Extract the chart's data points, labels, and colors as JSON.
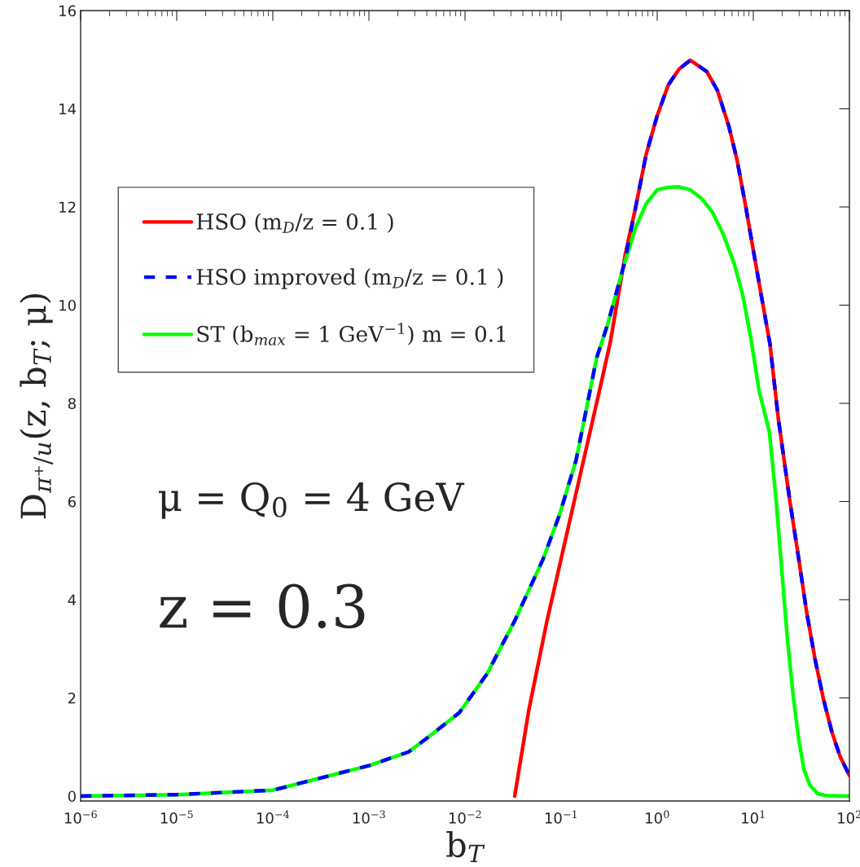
{
  "chart_data": {
    "type": "line",
    "xlabel": "b$_{T}$",
    "ylabel": "D$_{π⁺/u}$(z, b$_{T}$; μ)",
    "log": "x",
    "xlim": [
      1e-06,
      100
    ],
    "ylim": [
      -0.1,
      16
    ],
    "xticks": [
      {
        "value": 1e-06,
        "label": "10$^{−6}$"
      },
      {
        "value": 1e-05,
        "label": "10$^{−5}$"
      },
      {
        "value": 0.0001,
        "label": "10$^{−4}$"
      },
      {
        "value": 0.001,
        "label": "10$^{−3}$"
      },
      {
        "value": 0.01,
        "label": "10$^{−2}$"
      },
      {
        "value": 0.1,
        "label": "10$^{−1}$"
      },
      {
        "value": 1,
        "label": "10$^{0}$"
      },
      {
        "value": 10,
        "label": "10$^{1}$"
      },
      {
        "value": 100,
        "label": "10$^{2}$"
      }
    ],
    "yticks": [
      0,
      2,
      4,
      6,
      8,
      10,
      12,
      14,
      16
    ],
    "grid": false,
    "legend": "top left",
    "marker": "none",
    "annotations": [
      "μ = Q$_{0}$ = 4 GeV",
      "z = 0.3"
    ],
    "series": [
      {
        "name": "HSO (m$_{D}$/z = 0.1 )",
        "color": "#ff0000",
        "line_style": "solid",
        "x": [
          0.0329,
          0.0462,
          0.0713,
          0.1254,
          0.2,
          0.25,
          0.326,
          0.467,
          0.59,
          0.769,
          1.0,
          1.3,
          1.69,
          2.21,
          3.27,
          4.24,
          5.57,
          6.77,
          8.23,
          10.0,
          12.2,
          14.9,
          18.2,
          24.0,
          29.5,
          36.0,
          44.1,
          53.6,
          65.8,
          80.2,
          100
        ],
        "values": [
          0,
          1.76,
          3.57,
          5.68,
          7.42,
          8.25,
          9.26,
          11.05,
          11.95,
          13.08,
          13.86,
          14.48,
          14.81,
          14.99,
          14.76,
          14.37,
          13.64,
          12.96,
          12.07,
          11.12,
          10.16,
          9.21,
          7.69,
          6.01,
          4.87,
          3.73,
          2.77,
          1.98,
          1.3,
          0.8,
          0.42
        ]
      },
      {
        "name": "HSO improved (m$_{D}$/z = 0.1 )",
        "color": "#0000ff",
        "line_style": "dashed",
        "x": [
          1e-06,
          1e-05,
          0.0001,
          0.001,
          0.00259,
          0.0044,
          0.00873,
          0.01694,
          0.0329,
          0.0644,
          0.0962,
          0.1435,
          0.2344,
          0.304,
          0.454,
          0.59,
          0.769,
          1.0,
          1.3,
          1.69,
          2.21,
          3.27,
          4.24,
          5.57,
          6.77,
          8.23,
          10.0,
          12.2,
          14.9,
          18.2,
          24.0,
          29.5,
          36.0,
          44.1,
          53.6,
          65.8,
          80.2,
          100
        ],
        "values": [
          0,
          0.03,
          0.12,
          0.62,
          0.9,
          1.24,
          1.7,
          2.49,
          3.57,
          4.81,
          5.73,
          6.85,
          8.93,
          9.6,
          10.84,
          11.95,
          13.08,
          13.86,
          14.48,
          14.81,
          14.99,
          14.76,
          14.37,
          13.64,
          12.96,
          12.07,
          11.12,
          10.16,
          9.21,
          7.69,
          6.01,
          4.87,
          3.73,
          2.77,
          1.98,
          1.3,
          0.8,
          0.42
        ]
      },
      {
        "name": "ST (b$_{max}$ = 1 GeV$^{−1}$) m = 0.1",
        "color": "#00ff00",
        "line_style": "solid",
        "x": [
          1e-06,
          1e-05,
          0.0001,
          0.001,
          0.00259,
          0.0044,
          0.00873,
          0.01694,
          0.0329,
          0.0644,
          0.0962,
          0.1435,
          0.2344,
          0.304,
          0.454,
          0.515,
          0.59,
          0.769,
          1.0,
          1.3,
          1.69,
          2.21,
          2.87,
          3.74,
          4.85,
          6.34,
          7.73,
          9.44,
          11.5,
          14.7,
          17.3,
          19.8,
          22.7,
          26.0,
          29.5,
          33.5,
          38.5,
          46.7,
          57.4,
          100
        ],
        "values": [
          0,
          0.03,
          0.12,
          0.62,
          0.9,
          1.24,
          1.7,
          2.49,
          3.57,
          4.81,
          5.73,
          6.85,
          8.93,
          9.6,
          10.84,
          11.17,
          11.56,
          12.07,
          12.35,
          12.4,
          12.41,
          12.35,
          12.18,
          11.9,
          11.45,
          10.84,
          10.22,
          9.32,
          8.25,
          7.42,
          6.01,
          4.59,
          3.17,
          2.04,
          1.19,
          0.56,
          0.23,
          0.05,
          0.01,
          0
        ]
      }
    ]
  }
}
